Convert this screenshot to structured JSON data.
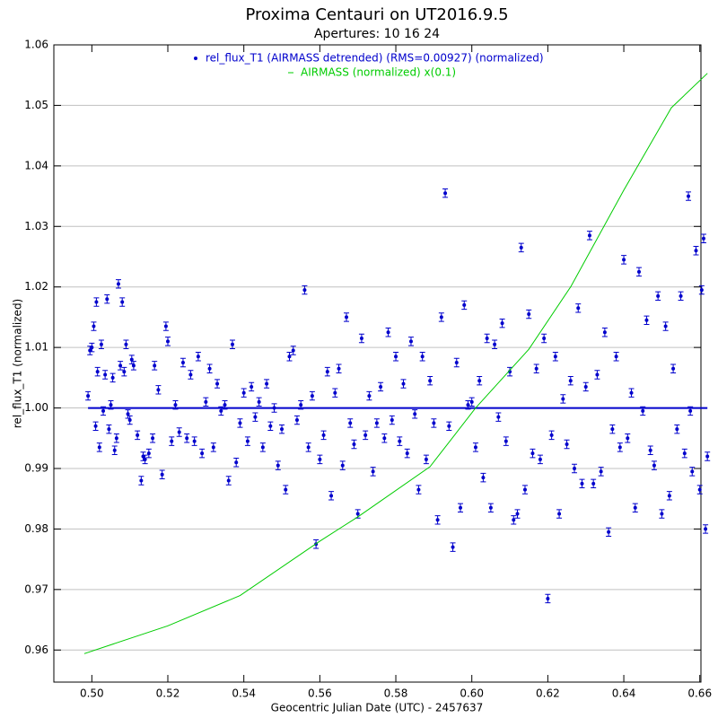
{
  "chart_data": {
    "type": "scatter",
    "title": "Proxima Centauri on UT2016.9.5",
    "subtitle": "Apertures: 10 16 24",
    "xlabel": "Geocentric Julian Date (UTC) - 2457637",
    "ylabel": "rel_flux_T1 (normalized)",
    "xlim": [
      0.49,
      0.6603
    ],
    "ylim": [
      0.9547,
      1.06
    ],
    "xticks": [
      {
        "value": 0.5,
        "label": "0.50"
      },
      0.52,
      0.54,
      0.56,
      0.58,
      {
        "value": 0.6,
        "label": "0.60"
      },
      0.62,
      0.64,
      0.66
    ],
    "yticks": [
      0.96,
      0.97,
      0.98,
      0.99,
      {
        "value": 1,
        "label": "1.00"
      },
      1.01,
      1.02,
      1.03,
      1.04,
      1.05,
      1.06
    ],
    "grid": true,
    "fit": {
      "color": "#0000cc",
      "x": [
        0.499,
        0.662
      ],
      "values": [
        1,
        1
      ]
    },
    "series": [
      {
        "name": "rel_flux_T1 (AIRMASS detrended) (RMS=0.00927) (normalized)",
        "color": "#0000cc",
        "type": "scatter",
        "yerr": 0.0007,
        "x": [
          0.499,
          0.4995,
          0.5,
          0.5005,
          0.501,
          0.5012,
          0.5015,
          0.502,
          0.5025,
          0.503,
          0.5035,
          0.504,
          0.5045,
          0.505,
          0.5055,
          0.506,
          0.5065,
          0.507,
          0.5075,
          0.508,
          0.5085,
          0.509,
          0.5095,
          0.51,
          0.5105,
          0.511,
          0.512,
          0.513,
          0.5135,
          0.514,
          0.515,
          0.516,
          0.5165,
          0.5175,
          0.5185,
          0.5195,
          0.52,
          0.521,
          0.522,
          0.523,
          0.524,
          0.525,
          0.526,
          0.527,
          0.528,
          0.529,
          0.53,
          0.531,
          0.532,
          0.533,
          0.534,
          0.535,
          0.536,
          0.537,
          0.538,
          0.539,
          0.54,
          0.541,
          0.542,
          0.543,
          0.544,
          0.545,
          0.546,
          0.547,
          0.548,
          0.549,
          0.55,
          0.551,
          0.552,
          0.553,
          0.554,
          0.555,
          0.556,
          0.557,
          0.558,
          0.559,
          0.56,
          0.561,
          0.562,
          0.563,
          0.564,
          0.565,
          0.566,
          0.567,
          0.568,
          0.569,
          0.57,
          0.571,
          0.572,
          0.573,
          0.574,
          0.575,
          0.576,
          0.577,
          0.578,
          0.579,
          0.58,
          0.581,
          0.582,
          0.583,
          0.584,
          0.585,
          0.586,
          0.587,
          0.588,
          0.589,
          0.59,
          0.591,
          0.592,
          0.593,
          0.594,
          0.595,
          0.596,
          0.597,
          0.598,
          0.599,
          0.6,
          0.601,
          0.602,
          0.603,
          0.604,
          0.605,
          0.606,
          0.607,
          0.608,
          0.609,
          0.61,
          0.611,
          0.612,
          0.613,
          0.614,
          0.615,
          0.616,
          0.617,
          0.618,
          0.619,
          0.62,
          0.621,
          0.622,
          0.623,
          0.624,
          0.625,
          0.626,
          0.627,
          0.628,
          0.629,
          0.63,
          0.631,
          0.632,
          0.633,
          0.634,
          0.635,
          0.636,
          0.637,
          0.638,
          0.639,
          0.64,
          0.641,
          0.642,
          0.643,
          0.644,
          0.645,
          0.646,
          0.647,
          0.648,
          0.649,
          0.65,
          0.651,
          0.652,
          0.653,
          0.654,
          0.655,
          0.656,
          0.657,
          0.6575,
          0.658,
          0.659,
          0.66,
          0.6605,
          0.661,
          0.6615,
          0.662
        ],
        "values": [
          1.002,
          1.0095,
          1.01,
          1.0135,
          0.997,
          1.0175,
          1.006,
          0.9935,
          1.0105,
          0.9995,
          1.0055,
          1.018,
          0.9965,
          1.0005,
          1.005,
          0.993,
          0.995,
          1.0205,
          1.007,
          1.0175,
          1.006,
          1.0105,
          0.999,
          0.998,
          1.008,
          1.007,
          0.9955,
          0.988,
          0.992,
          0.9915,
          0.9925,
          0.995,
          1.007,
          1.003,
          0.989,
          1.0135,
          1.011,
          0.9945,
          1.0005,
          0.996,
          1.0075,
          0.995,
          1.0055,
          0.9945,
          1.0085,
          0.9925,
          1.001,
          1.0065,
          0.9935,
          1.004,
          0.9995,
          1.0005,
          0.988,
          1.0105,
          0.991,
          0.9975,
          1.0025,
          0.9945,
          1.0035,
          0.9985,
          1.001,
          0.9935,
          1.004,
          0.997,
          1,
          0.9905,
          0.9965,
          0.9865,
          1.0085,
          1.0095,
          0.998,
          1.0005,
          1.0195,
          0.9935,
          1.002,
          0.9775,
          0.9915,
          0.9955,
          1.006,
          0.9855,
          1.0025,
          1.0065,
          0.9905,
          1.015,
          0.9975,
          0.994,
          0.9825,
          1.0115,
          0.9955,
          1.002,
          0.9895,
          0.9975,
          1.0035,
          0.995,
          1.0125,
          0.998,
          1.0085,
          0.9945,
          1.004,
          0.9925,
          1.011,
          0.999,
          0.9865,
          1.0085,
          0.9915,
          1.0045,
          0.9975,
          0.9815,
          1.015,
          1.0355,
          0.997,
          0.977,
          1.0075,
          0.9835,
          1.017,
          1.0005,
          1.001,
          0.9935,
          1.0045,
          0.9885,
          1.0115,
          0.9835,
          1.0105,
          0.9985,
          1.014,
          0.9945,
          1.006,
          0.9815,
          0.9825,
          1.0265,
          0.9865,
          1.0155,
          0.9925,
          1.0065,
          0.9915,
          1.0115,
          0.9685,
          0.9955,
          1.0085,
          0.9825,
          1.0015,
          0.994,
          1.0045,
          0.99,
          1.0165,
          0.9875,
          1.0035,
          1.0285,
          0.9875,
          1.0055,
          0.9895,
          1.0125,
          0.9795,
          0.9965,
          1.0085,
          0.9935,
          1.0245,
          0.995,
          1.0025,
          0.9835,
          1.0225,
          0.9995,
          1.0145,
          0.993,
          0.9905,
          1.0185,
          0.9825,
          1.0135,
          0.9855,
          1.0065,
          0.9965,
          1.0185,
          0.9925,
          1.035,
          0.9995,
          0.9895,
          1.026,
          0.9865,
          1.0195,
          1.028,
          0.98,
          0.992
        ]
      },
      {
        "name": "AIRMASS (normalized) x(0.1)",
        "color": "#00cc00",
        "type": "line",
        "x": [
          0.498,
          0.52,
          0.539,
          0.56,
          0.57,
          0.589,
          0.601,
          0.615,
          0.626,
          0.64,
          0.6525,
          0.662
        ],
        "values": [
          0.9594,
          0.964,
          0.969,
          0.978,
          0.982,
          0.9903,
          1,
          1.0097,
          1.02,
          1.036,
          1.0496,
          1.0553
        ]
      }
    ]
  }
}
